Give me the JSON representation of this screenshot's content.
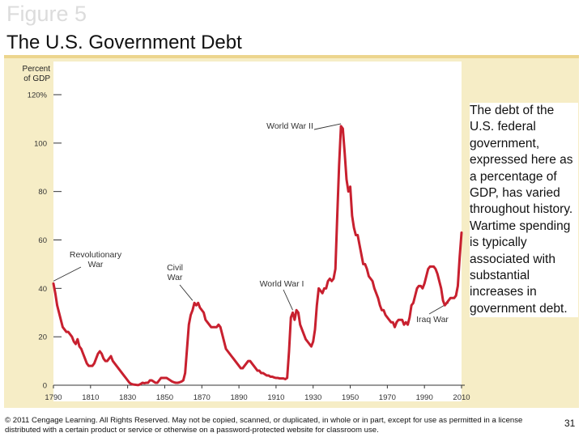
{
  "slide": {
    "figure_label": "Figure 5",
    "title": "The U.S. Government Debt",
    "description": "The debt of the U.S. federal government, expressed here as a percentage of GDP, has varied throughout history. Wartime spending is typically associated with substantial increases in government debt.",
    "footer": "© 2011 Cengage Learning. All Rights Reserved. May not be copied, scanned, or duplicated, in whole or in part, except for use as permitted in a license distributed with a certain product or service or otherwise on a password-protected website for classroom use.",
    "page_number": "31"
  },
  "colors": {
    "panel": "#f6edc6",
    "panel_strip": "#ecd58e",
    "plot_bg": "#ffffff",
    "line": "#c8202f",
    "axis": "#333333"
  },
  "chart_data": {
    "type": "line",
    "ylabel": [
      "Percent",
      "of GDP"
    ],
    "ylim": [
      0,
      120
    ],
    "xlim": [
      1790,
      2010
    ],
    "yticks": [
      0,
      20,
      40,
      60,
      80,
      100,
      120
    ],
    "ytick_labels": [
      "0",
      "20",
      "40",
      "60",
      "80",
      "100",
      "120%"
    ],
    "xticks": [
      1790,
      1810,
      1830,
      1850,
      1870,
      1890,
      1910,
      1930,
      1950,
      1970,
      1990,
      2010
    ],
    "xtick_labels": [
      "1790",
      "1810",
      "1830",
      "1850",
      "1870",
      "1890",
      "1910",
      "1930",
      "1950",
      "1970",
      "1990",
      "2010"
    ],
    "grid": false,
    "series": [
      {
        "points": [
          [
            1790,
            42
          ],
          [
            1791,
            38
          ],
          [
            1792,
            33
          ],
          [
            1793,
            30
          ],
          [
            1794,
            27
          ],
          [
            1795,
            24
          ],
          [
            1796,
            23
          ],
          [
            1797,
            22
          ],
          [
            1798,
            22
          ],
          [
            1799,
            21
          ],
          [
            1800,
            20
          ],
          [
            1801,
            18
          ],
          [
            1802,
            17
          ],
          [
            1803,
            19
          ],
          [
            1804,
            16
          ],
          [
            1805,
            15
          ],
          [
            1806,
            13
          ],
          [
            1807,
            11
          ],
          [
            1808,
            9
          ],
          [
            1809,
            8
          ],
          [
            1810,
            8
          ],
          [
            1811,
            8
          ],
          [
            1812,
            9
          ],
          [
            1813,
            11
          ],
          [
            1814,
            13
          ],
          [
            1815,
            14
          ],
          [
            1816,
            13
          ],
          [
            1817,
            11
          ],
          [
            1818,
            10
          ],
          [
            1819,
            10
          ],
          [
            1820,
            11
          ],
          [
            1821,
            12
          ],
          [
            1822,
            10
          ],
          [
            1823,
            9
          ],
          [
            1824,
            8
          ],
          [
            1825,
            7
          ],
          [
            1826,
            6
          ],
          [
            1827,
            5
          ],
          [
            1828,
            4
          ],
          [
            1829,
            3
          ],
          [
            1830,
            2
          ],
          [
            1831,
            1
          ],
          [
            1832,
            0.5
          ],
          [
            1833,
            0.3
          ],
          [
            1834,
            0.2
          ],
          [
            1835,
            0.1
          ],
          [
            1836,
            0.1
          ],
          [
            1837,
            0.5
          ],
          [
            1838,
            1
          ],
          [
            1839,
            0.8
          ],
          [
            1840,
            1
          ],
          [
            1841,
            1
          ],
          [
            1842,
            2
          ],
          [
            1843,
            2
          ],
          [
            1844,
            1.5
          ],
          [
            1845,
            1
          ],
          [
            1846,
            1
          ],
          [
            1847,
            2
          ],
          [
            1848,
            3
          ],
          [
            1849,
            3
          ],
          [
            1850,
            3
          ],
          [
            1851,
            3
          ],
          [
            1852,
            2.5
          ],
          [
            1853,
            2
          ],
          [
            1854,
            1.5
          ],
          [
            1855,
            1.2
          ],
          [
            1856,
            1
          ],
          [
            1857,
            1
          ],
          [
            1858,
            1.2
          ],
          [
            1859,
            1.5
          ],
          [
            1860,
            2
          ],
          [
            1861,
            5
          ],
          [
            1862,
            15
          ],
          [
            1863,
            25
          ],
          [
            1864,
            29
          ],
          [
            1865,
            31
          ],
          [
            1866,
            34
          ],
          [
            1867,
            33
          ],
          [
            1868,
            34
          ],
          [
            1869,
            32
          ],
          [
            1870,
            31
          ],
          [
            1871,
            30
          ],
          [
            1872,
            27
          ],
          [
            1873,
            26
          ],
          [
            1874,
            25
          ],
          [
            1875,
            24
          ],
          [
            1876,
            24
          ],
          [
            1877,
            24
          ],
          [
            1878,
            24
          ],
          [
            1879,
            25
          ],
          [
            1880,
            24
          ],
          [
            1881,
            21
          ],
          [
            1882,
            18
          ],
          [
            1883,
            15
          ],
          [
            1884,
            14
          ],
          [
            1885,
            13
          ],
          [
            1886,
            12
          ],
          [
            1887,
            11
          ],
          [
            1888,
            10
          ],
          [
            1889,
            9
          ],
          [
            1890,
            8
          ],
          [
            1891,
            7
          ],
          [
            1892,
            7
          ],
          [
            1893,
            8
          ],
          [
            1894,
            9
          ],
          [
            1895,
            10
          ],
          [
            1896,
            10
          ],
          [
            1897,
            9
          ],
          [
            1898,
            8
          ],
          [
            1899,
            7
          ],
          [
            1900,
            6
          ],
          [
            1901,
            6
          ],
          [
            1902,
            5
          ],
          [
            1903,
            5
          ],
          [
            1904,
            4.5
          ],
          [
            1905,
            4
          ],
          [
            1906,
            4
          ],
          [
            1907,
            3.5
          ],
          [
            1908,
            3.5
          ],
          [
            1909,
            3.2
          ],
          [
            1910,
            3
          ],
          [
            1911,
            3
          ],
          [
            1912,
            2.8
          ],
          [
            1913,
            2.8
          ],
          [
            1914,
            2.8
          ],
          [
            1915,
            2.5
          ],
          [
            1916,
            3
          ],
          [
            1917,
            14
          ],
          [
            1918,
            28
          ],
          [
            1919,
            30
          ],
          [
            1920,
            27
          ],
          [
            1921,
            31
          ],
          [
            1922,
            30
          ],
          [
            1923,
            25
          ],
          [
            1924,
            23
          ],
          [
            1925,
            21
          ],
          [
            1926,
            19
          ],
          [
            1927,
            18
          ],
          [
            1928,
            17
          ],
          [
            1929,
            16
          ],
          [
            1930,
            18
          ],
          [
            1931,
            23
          ],
          [
            1932,
            33
          ],
          [
            1933,
            40
          ],
          [
            1934,
            39
          ],
          [
            1935,
            38
          ],
          [
            1936,
            40
          ],
          [
            1937,
            40
          ],
          [
            1938,
            43
          ],
          [
            1939,
            44
          ],
          [
            1940,
            43
          ],
          [
            1941,
            44
          ],
          [
            1942,
            48
          ],
          [
            1943,
            70
          ],
          [
            1944,
            91
          ],
          [
            1945,
            107
          ],
          [
            1946,
            106
          ],
          [
            1947,
            96
          ],
          [
            1948,
            85
          ],
          [
            1949,
            80
          ],
          [
            1950,
            82
          ],
          [
            1951,
            70
          ],
          [
            1952,
            65
          ],
          [
            1953,
            62
          ],
          [
            1954,
            62
          ],
          [
            1955,
            58
          ],
          [
            1956,
            54
          ],
          [
            1957,
            50
          ],
          [
            1958,
            50
          ],
          [
            1959,
            48
          ],
          [
            1960,
            45
          ],
          [
            1961,
            44
          ],
          [
            1962,
            43
          ],
          [
            1963,
            40
          ],
          [
            1964,
            38
          ],
          [
            1965,
            36
          ],
          [
            1966,
            33
          ],
          [
            1967,
            31
          ],
          [
            1968,
            31
          ],
          [
            1969,
            29
          ],
          [
            1970,
            28
          ],
          [
            1971,
            27
          ],
          [
            1972,
            26
          ],
          [
            1973,
            26
          ],
          [
            1974,
            24
          ],
          [
            1975,
            26
          ],
          [
            1976,
            27
          ],
          [
            1977,
            27
          ],
          [
            1978,
            27
          ],
          [
            1979,
            25
          ],
          [
            1980,
            26
          ],
          [
            1981,
            25
          ],
          [
            1982,
            28
          ],
          [
            1983,
            33
          ],
          [
            1984,
            34
          ],
          [
            1985,
            37
          ],
          [
            1986,
            40
          ],
          [
            1987,
            41
          ],
          [
            1988,
            41
          ],
          [
            1989,
            40
          ],
          [
            1990,
            42
          ],
          [
            1991,
            45
          ],
          [
            1992,
            48
          ],
          [
            1993,
            49
          ],
          [
            1994,
            49
          ],
          [
            1995,
            49
          ],
          [
            1996,
            48
          ],
          [
            1997,
            46
          ],
          [
            1998,
            43
          ],
          [
            1999,
            40
          ],
          [
            2000,
            35
          ],
          [
            2001,
            33
          ],
          [
            2002,
            34
          ],
          [
            2003,
            35
          ],
          [
            2004,
            36
          ],
          [
            2005,
            36
          ],
          [
            2006,
            36
          ],
          [
            2007,
            37
          ],
          [
            2008,
            41
          ],
          [
            2009,
            53
          ],
          [
            2010,
            63
          ]
        ]
      }
    ],
    "annotations": [
      {
        "id": "revolutionary-war",
        "lines": [
          "Revolutionary",
          "War"
        ],
        "x": 1790,
        "y": 42
      },
      {
        "id": "civil-war",
        "lines": [
          "Civil",
          "War"
        ],
        "x": 1865,
        "y": 34
      },
      {
        "id": "world-war-i",
        "lines": [
          "World War I"
        ],
        "x": 1919,
        "y": 30
      },
      {
        "id": "world-war-ii",
        "lines": [
          "World War II"
        ],
        "x": 1945,
        "y": 107
      },
      {
        "id": "iraq-war",
        "lines": [
          "Iraq War"
        ],
        "x": 2003,
        "y": 35
      }
    ]
  }
}
